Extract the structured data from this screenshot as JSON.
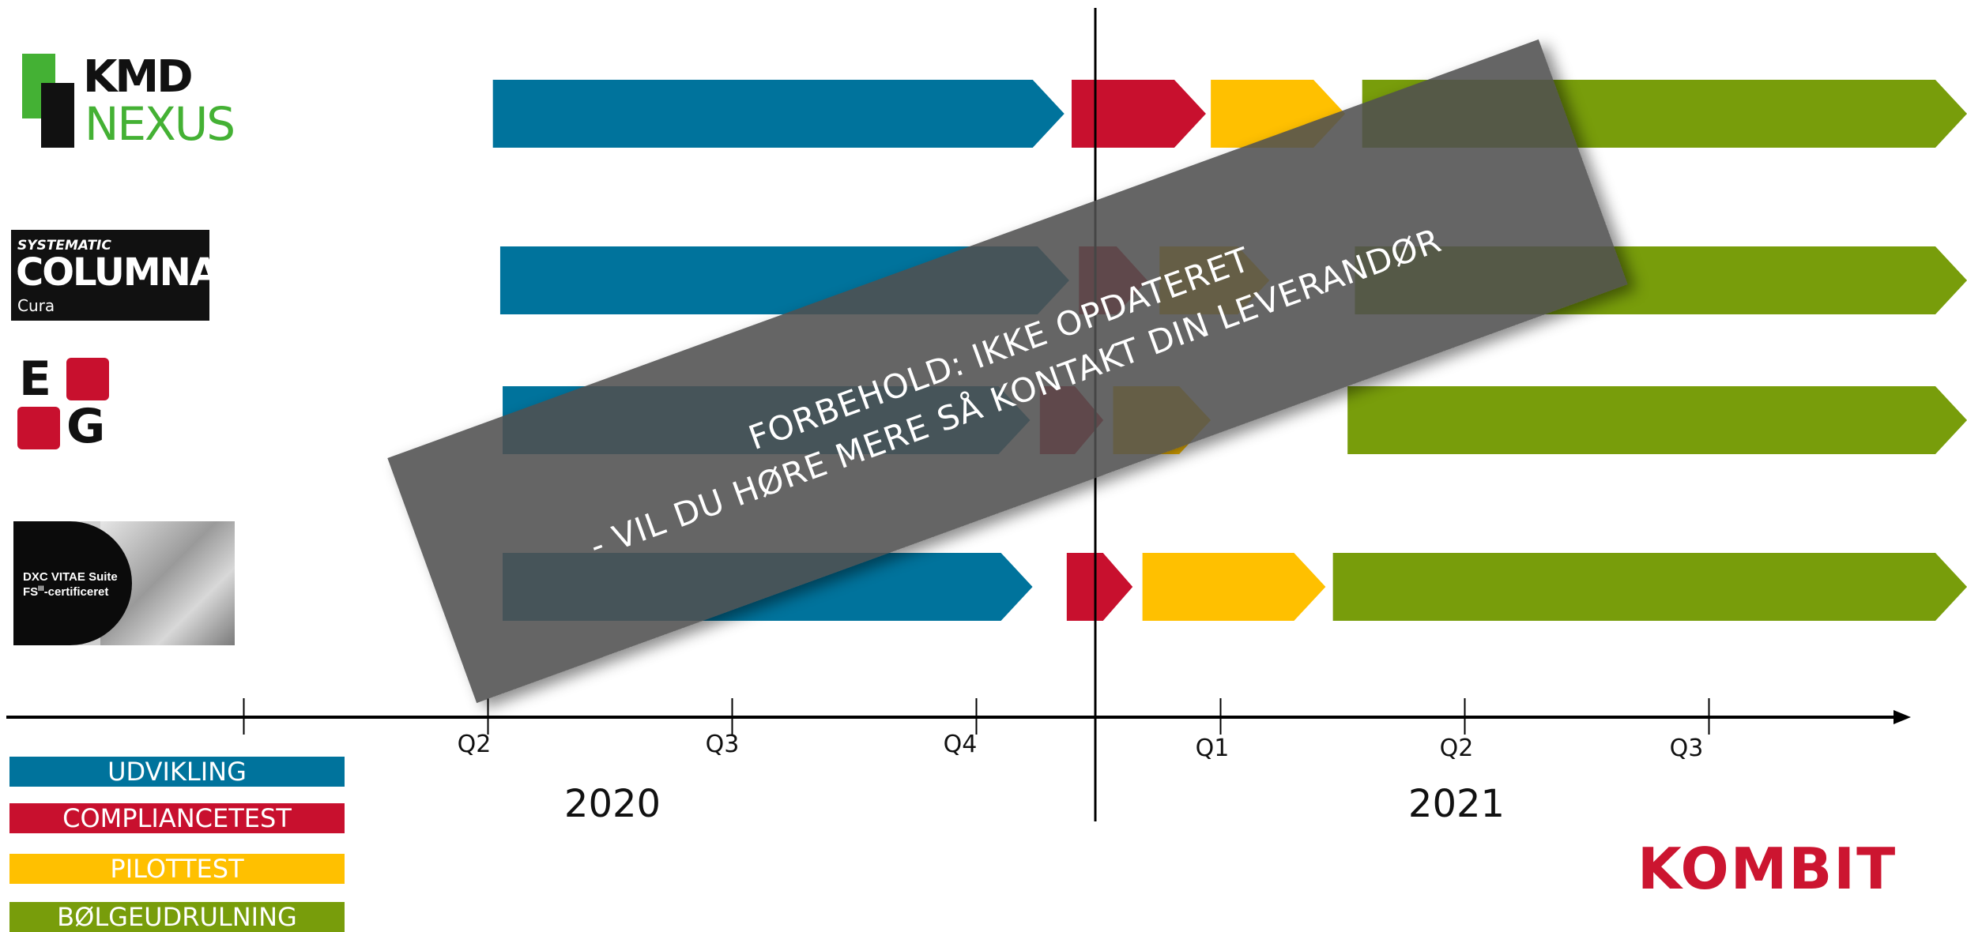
{
  "colors": {
    "udvikling": "#00739c",
    "compliancetest": "#c8102e",
    "pilottest": "#ffc000",
    "bolgeudrulning": "#789d0b",
    "kmd_green": "#44b134",
    "kombit_red": "#cc1530"
  },
  "logos": {
    "kmd": {
      "top": "KMD",
      "bottom": "NEXUS"
    },
    "columna": {
      "line1": "SYSTEMATIC",
      "line2": "COLUMNA",
      "line3": "Cura"
    },
    "eg": {
      "letter1": "E",
      "letter2": "G"
    },
    "dxc": {
      "line1": "DXC VITAE Suite",
      "line2": "FS",
      "sup": "III",
      "line2_rest": "-certificeret"
    }
  },
  "legend": [
    {
      "label": "UDVIKLING",
      "phase": "udvikling"
    },
    {
      "label": "COMPLIANCETEST",
      "phase": "compliancetest"
    },
    {
      "label": "PILOTTEST",
      "phase": "pilottest"
    },
    {
      "label": "BØLGEUDRULNING",
      "phase": "bolgeudrulning"
    }
  ],
  "timeline": {
    "quarters": [
      {
        "label": "Q2",
        "year": 2020
      },
      {
        "label": "Q3",
        "year": 2020
      },
      {
        "label": "Q4",
        "year": 2020
      },
      {
        "label": "Q1",
        "year": 2021
      },
      {
        "label": "Q2",
        "year": 2021
      },
      {
        "label": "Q3",
        "year": 2021
      }
    ],
    "years": [
      "2020",
      "2021"
    ]
  },
  "vendors": [
    {
      "name": "KMD NEXUS",
      "phases": [
        {
          "phase": "udvikling",
          "start": 0.52,
          "end": 2.86
        },
        {
          "phase": "compliancetest",
          "start": 2.89,
          "end": 3.44
        },
        {
          "phase": "pilottest",
          "start": 3.46,
          "end": 4.01
        },
        {
          "phase": "bolgeudrulning",
          "start": 4.08,
          "end": 7.65
        }
      ]
    },
    {
      "name": "SYSTEMATIC COLUMNA Cura",
      "phases": [
        {
          "phase": "udvikling",
          "start": 0.55,
          "end": 2.88
        },
        {
          "phase": "compliancetest",
          "start": 2.92,
          "end": 3.2
        },
        {
          "phase": "pilottest",
          "start": 3.25,
          "end": 3.7
        },
        {
          "phase": "bolgeudrulning",
          "start": 4.05,
          "end": 7.65
        }
      ]
    },
    {
      "name": "EG",
      "phases": [
        {
          "phase": "udvikling",
          "start": 0.56,
          "end": 2.72
        },
        {
          "phase": "compliancetest",
          "start": 2.76,
          "end": 3.02
        },
        {
          "phase": "pilottest",
          "start": 3.06,
          "end": 3.46
        },
        {
          "phase": "bolgeudrulning",
          "start": 4.02,
          "end": 7.65
        }
      ]
    },
    {
      "name": "DXC VITAE Suite",
      "phases": [
        {
          "phase": "udvikling",
          "start": 0.56,
          "end": 2.73
        },
        {
          "phase": "compliancetest",
          "start": 2.87,
          "end": 3.14
        },
        {
          "phase": "pilottest",
          "start": 3.18,
          "end": 3.93
        },
        {
          "phase": "bolgeudrulning",
          "start": 3.96,
          "end": 7.65
        }
      ]
    }
  ],
  "today_marker": 4.0,
  "disclaimer": {
    "line1": "FORBEHOLD: IKKE OPDATERET",
    "line2": "- VIL DU HØRE MERE SÅ KONTAKT DIN LEVERANDØR"
  },
  "brand": "KOMBIT"
}
